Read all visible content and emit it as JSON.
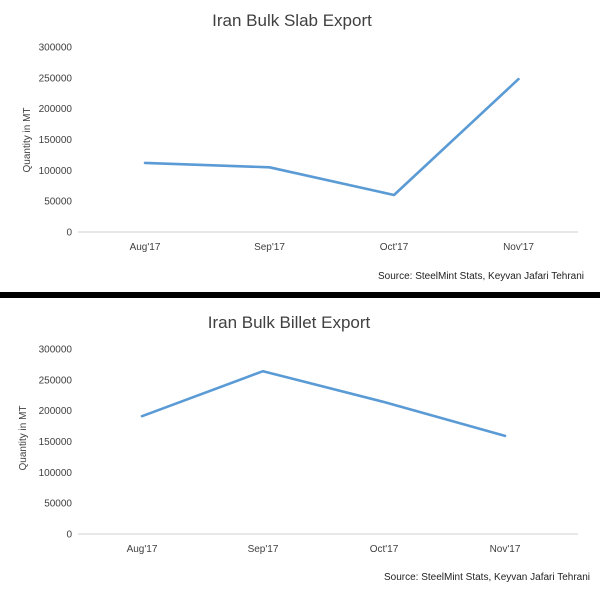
{
  "chart_data": [
    {
      "type": "line",
      "title": "Iran Bulk Slab Export",
      "ylabel": "Quantity in MT",
      "xlabel": "",
      "categories": [
        "Aug'17",
        "Sep'17",
        "Oct'17",
        "Nov'17"
      ],
      "series": [
        {
          "values": [
            112000,
            105000,
            60000,
            248000
          ],
          "color": "#5b9bd5"
        }
      ],
      "ylim": [
        0,
        300000
      ],
      "yticks": [
        0,
        50000,
        100000,
        150000,
        200000,
        250000,
        300000
      ],
      "grid": false,
      "source": "Source: SteelMint Stats, Keyvan Jafari Tehrani"
    },
    {
      "type": "line",
      "title": "Iran Bulk Billet Export",
      "ylabel": "Quantity in MT",
      "xlabel": "",
      "categories": [
        "Aug'17",
        "Sep'17",
        "Oct'17",
        "Nov'17"
      ],
      "series": [
        {
          "values": [
            191000,
            264000,
            214000,
            159000
          ],
          "color": "#5b9bd5"
        }
      ],
      "ylim": [
        0,
        300000
      ],
      "yticks": [
        0,
        50000,
        100000,
        150000,
        200000,
        250000,
        300000
      ],
      "grid": false,
      "source": "Source: SteelMint Stats, Keyvan Jafari Tehrani"
    }
  ]
}
